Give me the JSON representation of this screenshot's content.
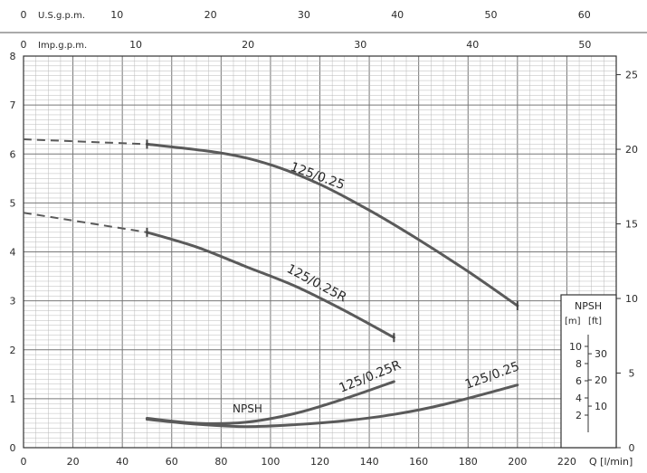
{
  "chart_data": {
    "type": "line",
    "x_axis": {
      "label": "Q [l/min]",
      "min": 0,
      "max": 240,
      "ticks": [
        0,
        20,
        40,
        60,
        80,
        100,
        120,
        140,
        160,
        180,
        200,
        220
      ]
    },
    "top_axis_us": {
      "label": "U.S.g.p.m.",
      "ticks": [
        0,
        10,
        20,
        30,
        40,
        50,
        60
      ]
    },
    "top_axis_imp": {
      "label": "Imp.g.p.m.",
      "ticks": [
        0,
        10,
        20,
        30,
        40,
        50
      ]
    },
    "y_left": {
      "min": 0,
      "max": 8,
      "ticks": [
        0,
        1,
        2,
        3,
        4,
        5,
        6,
        7,
        8
      ]
    },
    "y_right": {
      "ticks": [
        0,
        5,
        10,
        15,
        20,
        25
      ]
    },
    "series": [
      {
        "name": "125/0.25",
        "x": [
          50,
          80,
          100,
          120,
          140,
          160,
          180,
          200
        ],
        "y": [
          6.2,
          6.02,
          5.78,
          5.38,
          4.85,
          4.25,
          3.6,
          2.9
        ],
        "extrapolated": {
          "x": [
            0,
            50
          ],
          "y": [
            6.3,
            6.2
          ]
        }
      },
      {
        "name": "125/0.25R",
        "x": [
          50,
          70,
          90,
          110,
          130,
          150
        ],
        "y": [
          4.4,
          4.1,
          3.7,
          3.3,
          2.8,
          2.25
        ],
        "extrapolated": {
          "x": [
            0,
            50
          ],
          "y": [
            4.8,
            4.4
          ]
        }
      },
      {
        "name": "125/0.25R",
        "group": "NPSH",
        "x": [
          50,
          70,
          90,
          110,
          130,
          150
        ],
        "y": [
          0.6,
          0.5,
          0.52,
          0.7,
          1.0,
          1.35
        ]
      },
      {
        "name": "125/0.25",
        "group": "NPSH",
        "x": [
          50,
          70,
          90,
          110,
          130,
          150,
          170,
          200
        ],
        "y": [
          0.58,
          0.48,
          0.43,
          0.47,
          0.55,
          0.68,
          0.88,
          1.28
        ]
      }
    ],
    "npsh_label": "NPSH",
    "npsh_inset": {
      "title": "NPSH",
      "unit_m": "[m]",
      "unit_ft": "[ft]",
      "m_ticks": [
        2,
        4,
        6,
        8,
        10
      ],
      "ft_ticks": [
        10,
        20,
        30
      ]
    }
  }
}
